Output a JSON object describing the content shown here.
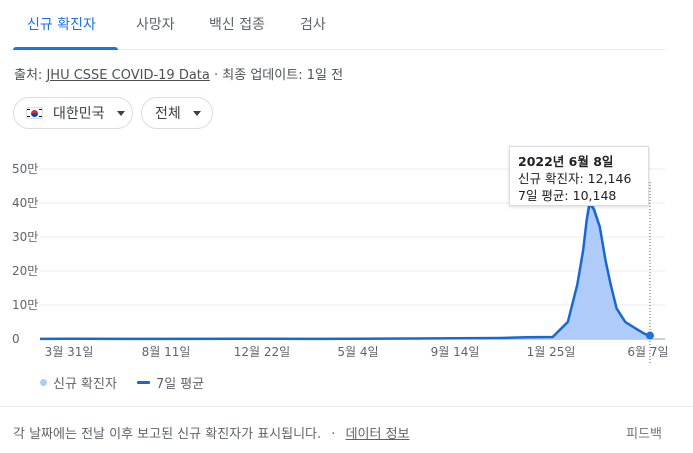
{
  "tabs": [
    {
      "label": "신규 확진자",
      "active": true
    },
    {
      "label": "사망자",
      "active": false
    },
    {
      "label": "백신 접종",
      "active": false
    },
    {
      "label": "검사",
      "active": false
    }
  ],
  "source": {
    "prefix": "출처:",
    "link": "JHU CSSE COVID-19 Data",
    "separator": "·",
    "updated": "최종 업데이트: 1일 전"
  },
  "filters": {
    "region": "대한민국",
    "scope": "전체"
  },
  "tooltip": {
    "date": "2022년 6월 8일",
    "new_cases": "신규 확진자: 12,146",
    "avg": "7일 평균: 10,148"
  },
  "legend": {
    "bars": "신규 확진자",
    "line": "7일 평균"
  },
  "footer": {
    "note": "각 날짜에는 전날 이후 보고된 신규 확진자가 표시됩니다.",
    "separator": "·",
    "link": "데이터 정보",
    "feedback": "피드백"
  },
  "colors": {
    "accent": "#1a73e8",
    "line": "#1967d2",
    "bars": "#aecbfa"
  },
  "chart_data": {
    "type": "area",
    "series": [
      {
        "name": "7일 평균",
        "x": [
          "2020-02-20",
          "2020-03-31",
          "2020-08-11",
          "2020-12-22",
          "2021-03-01",
          "2021-05-04",
          "2021-07-20",
          "2021-09-14",
          "2021-11-15",
          "2021-12-20",
          "2022-01-25",
          "2022-02-15",
          "2022-02-28",
          "2022-03-08",
          "2022-03-13",
          "2022-03-17",
          "2022-03-23",
          "2022-03-31",
          "2022-04-08",
          "2022-04-15",
          "2022-04-23",
          "2022-05-05",
          "2022-05-20",
          "2022-06-01",
          "2022-06-08"
        ],
        "values": [
          200,
          500,
          300,
          1000,
          400,
          600,
          1500,
          2000,
          3000,
          5000,
          6000,
          50000,
          160000,
          260000,
          350000,
          400000,
          380000,
          330000,
          230000,
          160000,
          90000,
          50000,
          30000,
          15000,
          10148
        ]
      },
      {
        "name": "신규 확진자",
        "x": [
          "2020-02-20",
          "2020-03-31",
          "2020-08-11",
          "2020-12-22",
          "2021-03-01",
          "2021-05-04",
          "2021-07-20",
          "2021-09-14",
          "2021-11-15",
          "2021-12-20",
          "2022-01-25",
          "2022-02-15",
          "2022-02-28",
          "2022-03-08",
          "2022-03-13",
          "2022-03-17",
          "2022-03-23",
          "2022-03-31",
          "2022-04-08",
          "2022-04-15",
          "2022-04-23",
          "2022-05-05",
          "2022-05-20",
          "2022-06-01",
          "2022-06-08"
        ],
        "values": [
          300,
          600,
          400,
          1100,
          500,
          700,
          1700,
          2300,
          3500,
          5500,
          7000,
          55000,
          170000,
          280000,
          380000,
          420000,
          400000,
          340000,
          240000,
          170000,
          95000,
          52000,
          32000,
          16000,
          12146
        ]
      }
    ],
    "y_ticks": [
      "0",
      "10만",
      "20만",
      "30만",
      "40만",
      "50만"
    ],
    "x_ticks": [
      "3월 31일",
      "8월 11일",
      "12월 22일",
      "5월 4일",
      "9월 14일",
      "1월 25일",
      "6월 7일"
    ],
    "ylim": [
      0,
      500000
    ],
    "grid": true,
    "legend": "bottom-left"
  }
}
